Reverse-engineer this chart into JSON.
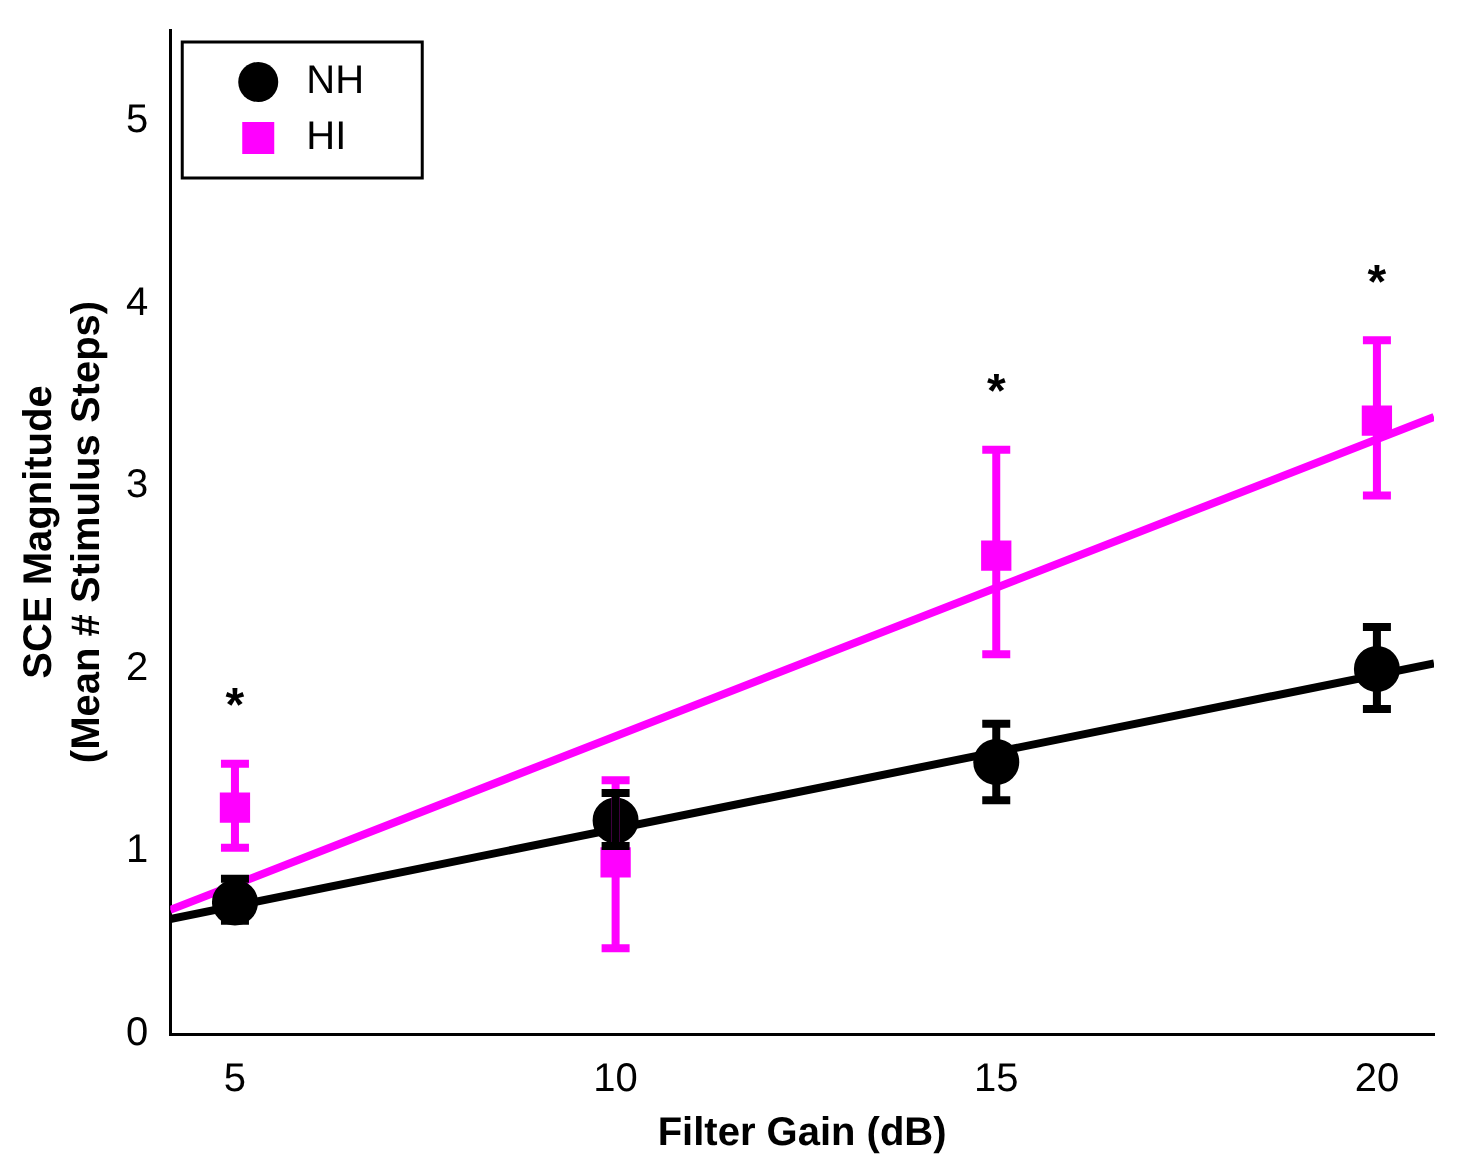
{
  "chart_data": {
    "type": "scatter",
    "xlabel": "Filter Gain (dB)",
    "ylabel": "SCE Magnitude\n(Mean # Stimulus Steps)",
    "xlim": [
      4.15,
      20.75
    ],
    "xticks": [
      5,
      10,
      15,
      20
    ],
    "ylim": [
      0,
      5.5
    ],
    "yticks": [
      0,
      1,
      2,
      3,
      4,
      5
    ],
    "grid": false,
    "legend": "top left",
    "series": [
      {
        "name": "NH",
        "color": "#000000",
        "marker": "circle",
        "x": [
          5,
          10,
          15,
          20
        ],
        "values": [
          0.72,
          1.17,
          1.49,
          2.0
        ],
        "errors": [
          [
            0.62,
            0.85
          ],
          [
            1.03,
            1.32
          ],
          [
            1.28,
            1.7
          ],
          [
            1.78,
            2.23
          ]
        ]
      },
      {
        "name": "HI",
        "color": "#ff00ff",
        "marker": "square",
        "x": [
          5,
          10,
          15,
          20
        ],
        "values": [
          1.24,
          0.94,
          2.62,
          3.36
        ],
        "errors": [
          [
            1.02,
            1.48
          ],
          [
            0.47,
            1.39
          ],
          [
            2.08,
            3.2
          ],
          [
            2.95,
            3.8
          ]
        ]
      },
      {
        "type": "line",
        "color": "#000000",
        "marker": "none",
        "x": [
          4.15,
          20.75
        ],
        "values": [
          0.63,
          2.03
        ]
      },
      {
        "type": "line",
        "color": "#ff00ff",
        "marker": "none",
        "x": [
          4.15,
          20.75
        ],
        "values": [
          0.68,
          3.38
        ]
      }
    ],
    "annotations": [
      {
        "text": "*",
        "x": 5,
        "y": 1.48
      },
      {
        "text": "*",
        "x": 15,
        "y": 3.2
      },
      {
        "text": "*",
        "x": 20,
        "y": 3.8
      }
    ]
  }
}
